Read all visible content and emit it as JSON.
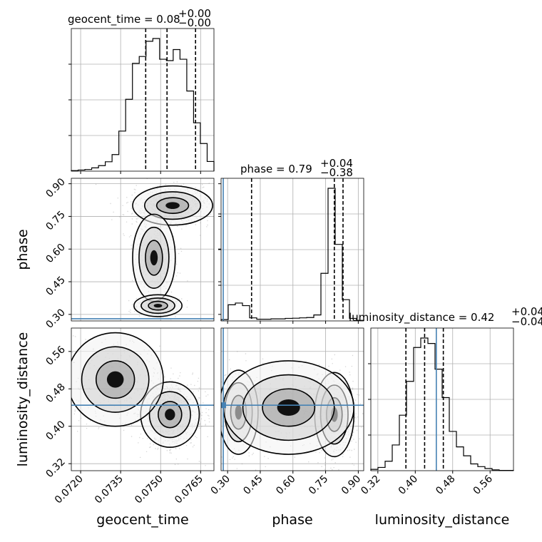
{
  "chart_data": {
    "type": "corner",
    "parameters": [
      "geocent_time",
      "phase",
      "luminosity_distance"
    ],
    "truth_color": "#4682b4",
    "truths": {
      "geocent_time": null,
      "phase": 0.28,
      "luminosity_distance": 0.445
    },
    "ranges": {
      "geocent_time": [
        0.07165,
        0.077
      ],
      "phase": [
        0.27,
        0.925
      ],
      "luminosity_distance": [
        0.305,
        0.61
      ]
    },
    "ticks": {
      "geocent_time": [
        "0.0720",
        "0.0735",
        "0.0750",
        "0.0765"
      ],
      "phase": [
        "0.30",
        "0.45",
        "0.60",
        "0.75",
        "0.90"
      ],
      "luminosity_distance": [
        "0.32",
        "0.40",
        "0.48",
        "0.56"
      ]
    },
    "titles": {
      "geocent_time": {
        "label": "geocent_time = 0.08",
        "plus": "+0.00",
        "minus": "−0.00"
      },
      "phase": {
        "label": "phase = 0.79",
        "plus": "+0.04",
        "minus": "−0.38"
      },
      "luminosity_distance": {
        "label": "luminosity_distance = 0.42",
        "plus": "+0.04",
        "minus": "−0.04"
      }
    },
    "histograms": {
      "geocent_time": {
        "edges_start": 0.07165,
        "edges_end": 0.077,
        "counts": [
          2,
          4,
          6,
          12,
          20,
          34,
          60,
          145,
          260,
          390,
          415,
          470,
          480,
          405,
          400,
          440,
          405,
          290,
          175,
          100,
          35
        ],
        "quantiles": [
          0.07444,
          0.07524,
          0.07631
        ]
      },
      "phase": {
        "edges_start": 0.27,
        "edges_end": 0.925,
        "counts": [
          8,
          95,
          105,
          90,
          18,
          10,
          10,
          12,
          12,
          15,
          16,
          18,
          20,
          35,
          280,
          780,
          450,
          125,
          15,
          3
        ],
        "quantiles": [
          0.41,
          0.79,
          0.83
        ]
      },
      "luminosity_distance": {
        "edges_start": 0.305,
        "edges_end": 0.61,
        "counts": [
          5,
          12,
          35,
          95,
          205,
          330,
          455,
          490,
          470,
          375,
          270,
          145,
          88,
          55,
          25,
          15,
          8,
          3,
          1,
          1
        ],
        "quantiles": [
          0.38,
          0.42,
          0.46
        ]
      }
    }
  }
}
